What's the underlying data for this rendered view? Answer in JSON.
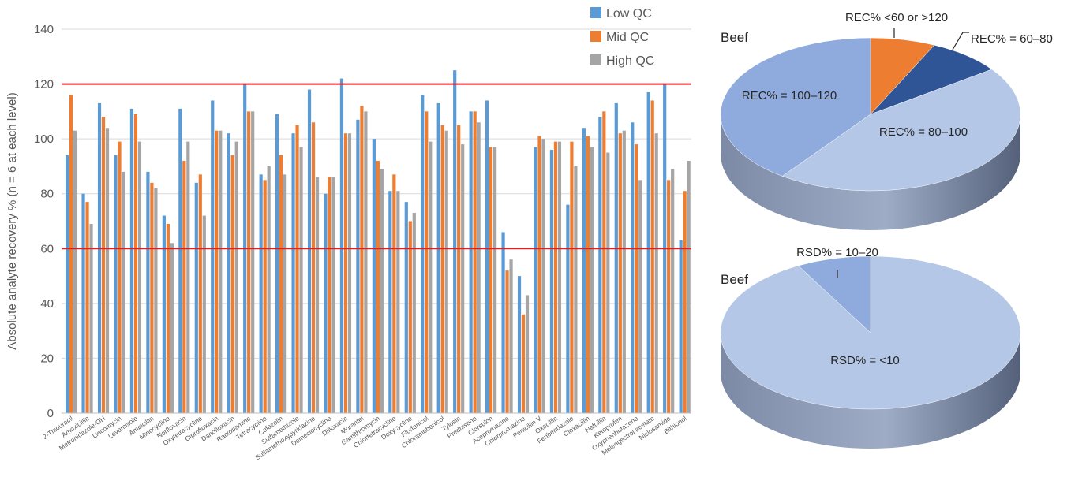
{
  "chart_data": [
    {
      "type": "bar",
      "ylabel": "Absolute analyte recovery % (n = 6 at each level)",
      "xlabel": "",
      "ylim": [
        0,
        140
      ],
      "yticks": [
        0,
        20,
        40,
        60,
        80,
        100,
        120,
        140
      ],
      "grid": true,
      "legend_position": "top-right",
      "reference_lines": [
        60,
        120
      ],
      "reference_line_color": "#e02020",
      "categories": [
        "2-Thiouracil",
        "Amoxicillin",
        "Metronidazole-OH",
        "Lincomycin",
        "Levamisole",
        "Ampicillin",
        "Minocycline",
        "Norfloxacin",
        "Oxytetracycline",
        "Ciprofloxacin",
        "Danofloxacin",
        "Ractopamine",
        "Tetracycline",
        "Cefazolin",
        "Sulfamethizole",
        "Sulfamethoxypyridazine",
        "Demeclocycline",
        "Difloxacin",
        "Morantel",
        "Gamithromycin",
        "Chlortetracycline",
        "Doxycycline",
        "Florfenicol",
        "Chloramphenicol",
        "Tylosin",
        "Prednisone",
        "Clorsulon",
        "Acepromazine",
        "Chlorpromazine",
        "Penicillin V",
        "Oxacillin",
        "Fenbendazole",
        "Cloxacillin",
        "Nafcillin",
        "Ketoprofen",
        "Oxyphenbutazone",
        "Melengestrol acetate",
        "Niclosamide",
        "Bithionol"
      ],
      "series": [
        {
          "name": "Low QC",
          "color": "#5b9bd5",
          "values": [
            94,
            80,
            113,
            94,
            111,
            88,
            72,
            111,
            84,
            114,
            102,
            120,
            87,
            109,
            102,
            118,
            80,
            122,
            107,
            100,
            81,
            77,
            116,
            113,
            125,
            110,
            114,
            66,
            50,
            97,
            96,
            76,
            104,
            108,
            113,
            106,
            117,
            120,
            63
          ]
        },
        {
          "name": "Mid QC",
          "color": "#ed7d31",
          "values": [
            116,
            77,
            108,
            99,
            109,
            84,
            69,
            92,
            87,
            103,
            94,
            110,
            85,
            94,
            105,
            106,
            86,
            102,
            112,
            92,
            87,
            70,
            110,
            105,
            105,
            110,
            97,
            52,
            36,
            101,
            99,
            99,
            101,
            110,
            102,
            98,
            114,
            85,
            81
          ]
        },
        {
          "name": "High QC",
          "color": "#a5a5a5",
          "values": [
            103,
            69,
            104,
            88,
            99,
            82,
            62,
            99,
            72,
            103,
            99,
            110,
            90,
            87,
            97,
            86,
            86,
            102,
            110,
            89,
            81,
            73,
            99,
            103,
            98,
            106,
            97,
            56,
            43,
            100,
            99,
            90,
            97,
            95,
            103,
            85,
            102,
            89,
            92
          ]
        }
      ]
    },
    {
      "type": "pie",
      "label": "Beef",
      "slices": [
        {
          "label": "REC% <60 or >120",
          "value": 7,
          "color": "#ed7d31",
          "label_placement": "callout"
        },
        {
          "label": "REC% = 60–80",
          "value": 8,
          "color": "#2f5597",
          "label_placement": "callout"
        },
        {
          "label": "REC% = 80–100",
          "value": 45,
          "color": "#b4c7e7",
          "label_placement": "inside"
        },
        {
          "label": "REC% = 100–120",
          "value": 40,
          "color": "#8faadc",
          "label_placement": "inside"
        }
      ]
    },
    {
      "type": "pie",
      "label": "Beef",
      "slices": [
        {
          "label": "RSD% = <10",
          "value": 92,
          "color": "#b4c7e7",
          "label_placement": "inside"
        },
        {
          "label": "RSD% = 10–20",
          "value": 8,
          "color": "#8faadc",
          "label_placement": "callout"
        }
      ]
    }
  ]
}
